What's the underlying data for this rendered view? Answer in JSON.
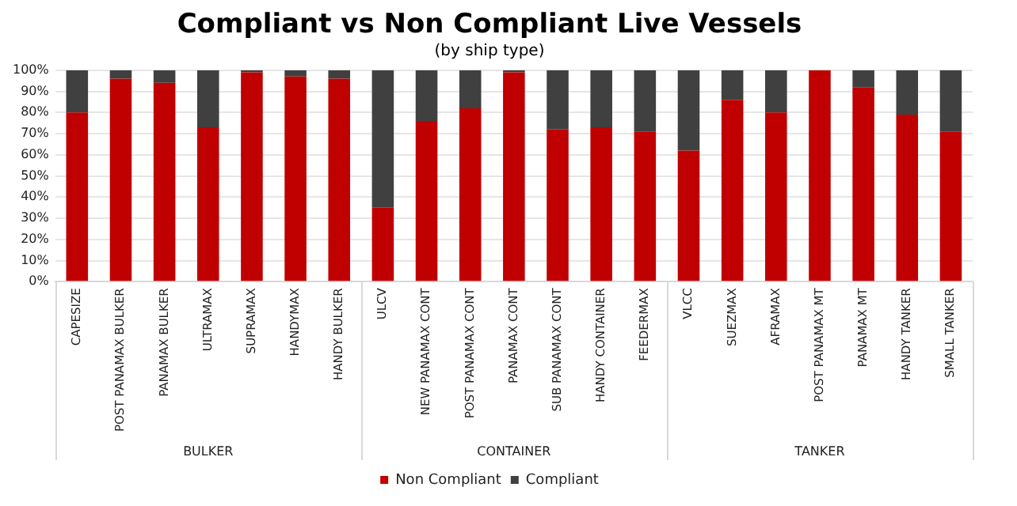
{
  "chart_data": {
    "type": "bar",
    "title": "Compliant vs Non Compliant Live Vessels",
    "subtitle": "(by ship type)",
    "categories": [
      "CAPESIZE",
      "POST PANAMAX BULKER",
      "PANAMAX BULKER",
      "ULTRAMAX",
      "SUPRAMAX",
      "HANDYMAX",
      "HANDY BULKER",
      "ULCV",
      "NEW PANAMAX CONT",
      "POST PANAMAX CONT",
      "PANAMAX CONT",
      "SUB PANAMAX CONT",
      "HANDY CONTAINER",
      "FEEDERMAX",
      "VLCC",
      "SUEZMAX",
      "AFRAMAX",
      "POST PANAMAX MT",
      "PANAMAX MT",
      "HANDY TANKER",
      "SMALL TANKER"
    ],
    "stacked": true,
    "series": [
      {
        "name": "Non Compliant",
        "color": "#c00000",
        "values": [
          80,
          96,
          94,
          73,
          99,
          97,
          96,
          35,
          76,
          82,
          99,
          72,
          73,
          71,
          62,
          86,
          80,
          100,
          92,
          79,
          71
        ]
      },
      {
        "name": "Compliant",
        "color": "#404040",
        "values": [
          20,
          4,
          6,
          27,
          1,
          3,
          4,
          65,
          24,
          18,
          1,
          28,
          27,
          29,
          38,
          14,
          20,
          0,
          8,
          21,
          29
        ]
      }
    ],
    "ylim": [
      0,
      100
    ],
    "yticks": [
      {
        "value": 0,
        "label": "0%"
      },
      {
        "value": 10,
        "label": "10%"
      },
      {
        "value": 20,
        "label": "20%"
      },
      {
        "value": 30,
        "label": "30%"
      },
      {
        "value": 40,
        "label": "40%"
      },
      {
        "value": 50,
        "label": "50%"
      },
      {
        "value": 60,
        "label": "60%"
      },
      {
        "value": 70,
        "label": "70%"
      },
      {
        "value": 80,
        "label": "80%"
      },
      {
        "value": 90,
        "label": "90%"
      },
      {
        "value": 100,
        "label": "100%"
      }
    ],
    "grid": "y",
    "legend": "bottom",
    "annotations": [
      "BULKER",
      "CONTAINER",
      "TANKER"
    ]
  }
}
